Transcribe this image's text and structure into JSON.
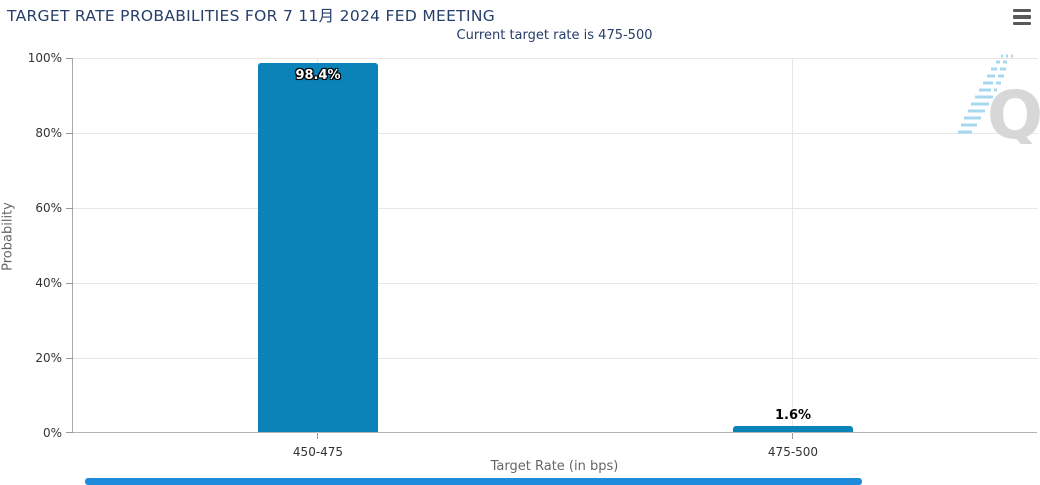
{
  "header": {
    "title": "TARGET RATE PROBABILITIES FOR 7 11月 2024 FED MEETING",
    "subtitle": "Current target rate is 475-500",
    "menu_icon": "hamburger-icon"
  },
  "chart_data": {
    "type": "bar",
    "title": "TARGET RATE PROBABILITIES FOR 7 11月 2024 FED MEETING",
    "subtitle": "Current target rate is 475-500",
    "categories": [
      "450-475",
      "475-500"
    ],
    "values": [
      98.4,
      1.6
    ],
    "labels": [
      "98.4%",
      "1.6%"
    ],
    "xlabel": "Target Rate (in bps)",
    "ylabel": "Probability",
    "ylim": [
      0,
      100
    ],
    "yticks_top_to_bottom": [
      "100%",
      "80%",
      "60%",
      "40%",
      "20%",
      "0%"
    ],
    "grid": true,
    "legend": "none",
    "bar_color": "#0b83b8"
  },
  "watermark": {
    "letter": "Q",
    "streak_color": "#a8d8f0",
    "letter_color": "#d7d7d7"
  },
  "colors": {
    "title": "#263e69",
    "axis_label": "#333333",
    "axis_title": "#666666",
    "gridline": "#e6e6e6",
    "axis_line": "#aaaaaa",
    "scrollbar": "#1f8cdb",
    "menu_icon": "#58595b"
  }
}
